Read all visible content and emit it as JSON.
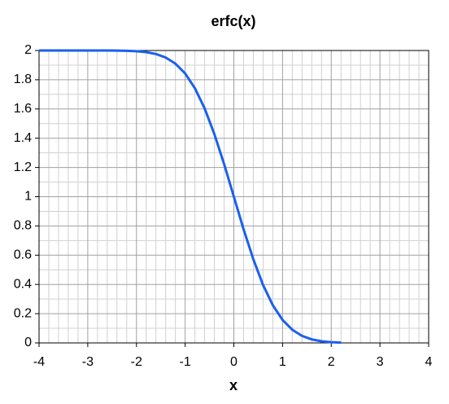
{
  "chart_data": {
    "type": "line",
    "title": "erfc(x)",
    "x_label": "x",
    "x": [
      -4,
      -3.8,
      -3.6,
      -3.4,
      -3.2,
      -3,
      -2.8,
      -2.6,
      -2.4,
      -2.2,
      -2,
      -1.8,
      -1.6,
      -1.4,
      -1.2,
      -1,
      -0.8,
      -0.6,
      -0.4,
      -0.2,
      0,
      0.2,
      0.4,
      0.6,
      0.8,
      1,
      1.2,
      1.4,
      1.6,
      1.8,
      2,
      2.2
    ],
    "series": [
      {
        "name": "erfc(x)",
        "color": "#1a5ff0",
        "values": [
          2,
          2,
          2,
          2,
          2,
          2,
          2,
          2,
          1.999,
          1.998,
          1.995,
          1.989,
          1.976,
          1.952,
          1.91,
          1.843,
          1.742,
          1.604,
          1.428,
          1.223,
          1,
          0.777,
          0.572,
          0.396,
          0.258,
          0.157,
          0.09,
          0.048,
          0.024,
          0.011,
          0.005,
          0.002
        ]
      }
    ],
    "xlim": [
      -4,
      4
    ],
    "xticks": [
      -4,
      -3,
      -2,
      -1,
      0,
      1,
      2,
      3,
      4
    ],
    "ylim": [
      0,
      2
    ],
    "yticks": [
      0,
      0.2,
      0.4,
      0.6,
      0.8,
      1,
      1.2,
      1.4,
      1.6,
      1.8,
      2
    ],
    "grid": true,
    "minor_grid": {
      "x": 5,
      "y": 2
    }
  }
}
